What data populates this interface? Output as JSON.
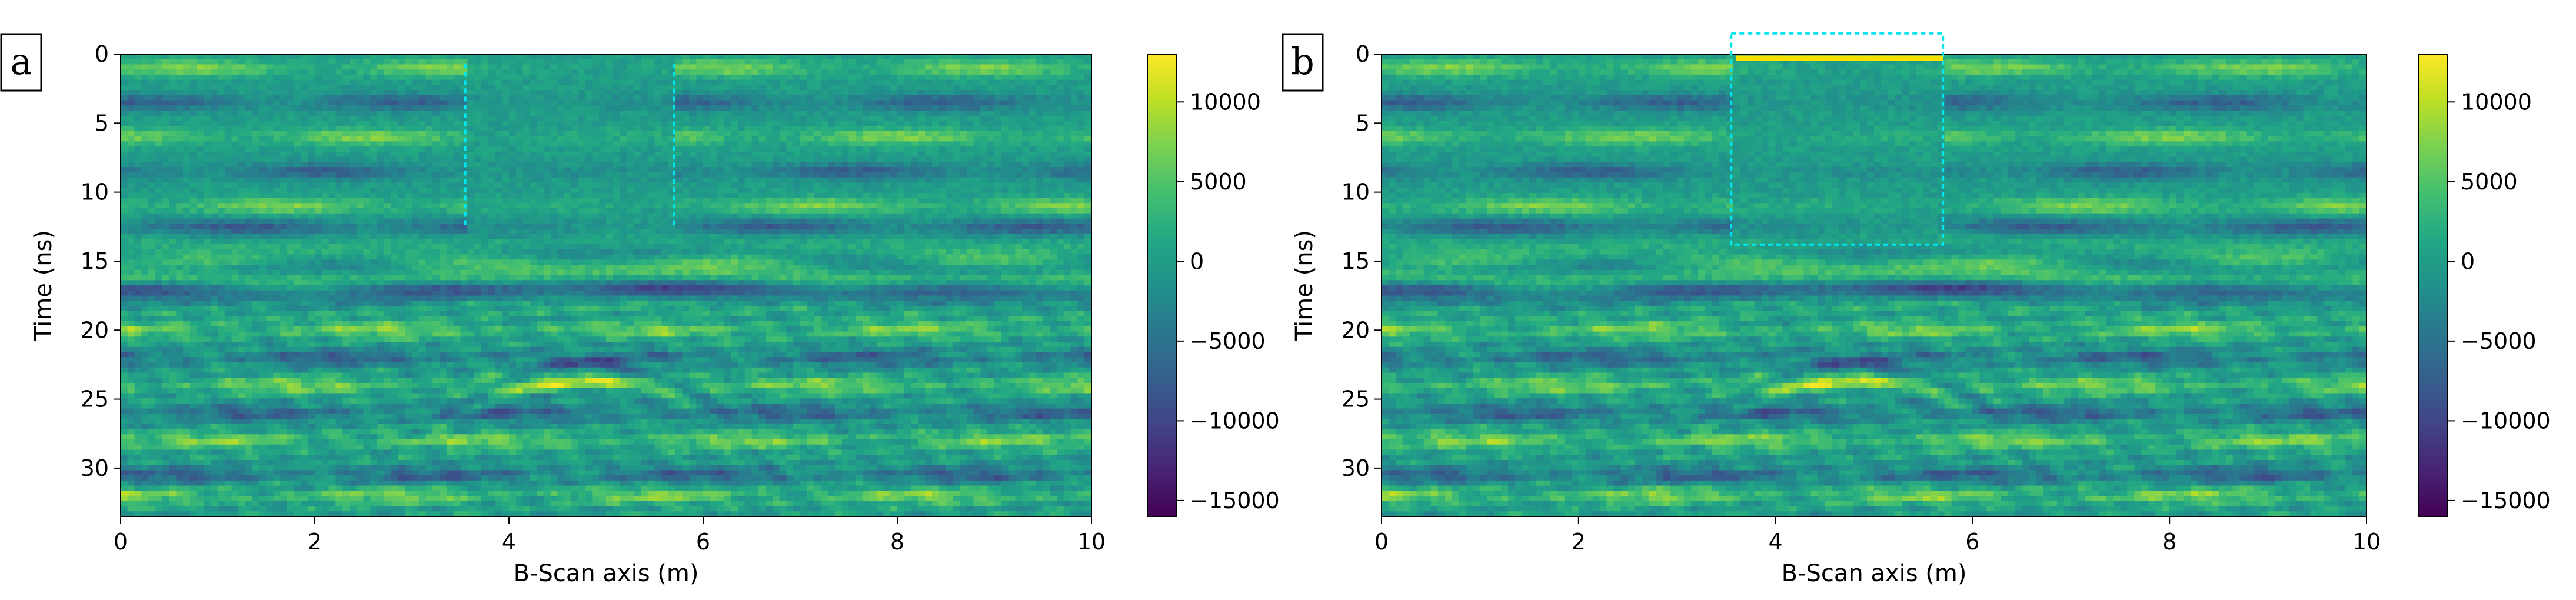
{
  "chart_data": [
    {
      "type": "heatmap",
      "panel_label": "a",
      "xlabel": "B-Scan axis (m)",
      "ylabel": "Time (ns)",
      "xlim": [
        0,
        10
      ],
      "ylim": [
        33.5,
        0
      ],
      "x_ticks": [
        0,
        2,
        4,
        6,
        8,
        10
      ],
      "y_ticks": [
        0,
        5,
        10,
        15,
        20,
        25,
        30
      ],
      "colorbar": {
        "colormap": "viridis",
        "range": [
          -16000,
          13000
        ],
        "ticks": [
          10000,
          5000,
          0,
          -5000,
          -10000,
          -15000
        ],
        "tick_labels": [
          "10000",
          "5000",
          "0",
          "−5000",
          "−10000",
          "−15000"
        ]
      },
      "layers": {
        "horizontal_bands_ns": [
          1,
          3.5,
          6,
          8.5,
          11,
          12.5,
          15,
          17,
          20,
          22,
          24,
          26,
          28,
          30.5,
          32
        ],
        "hyperbola_apex": {
          "x_m": 4.8,
          "t_ns": 23
        },
        "attenuated_region": {
          "x_m": [
            3.55,
            5.7
          ],
          "t_ns": [
            0,
            13
          ]
        }
      },
      "annotations": [
        {
          "type": "dashed-line",
          "color": "#00e5ee",
          "x_m": 3.55,
          "t_ns": [
            0.7,
            12.5
          ]
        },
        {
          "type": "dashed-line",
          "color": "#00e5ee",
          "x_m": 5.7,
          "t_ns": [
            0.7,
            12.5
          ]
        }
      ]
    },
    {
      "type": "heatmap",
      "panel_label": "b",
      "xlabel": "B-Scan axis (m)",
      "ylabel": "Time (ns)",
      "xlim": [
        0,
        10
      ],
      "ylim": [
        33.5,
        0
      ],
      "x_ticks": [
        0,
        2,
        4,
        6,
        8,
        10
      ],
      "y_ticks": [
        0,
        5,
        10,
        15,
        20,
        25,
        30
      ],
      "colorbar": {
        "colormap": "viridis",
        "range": [
          -16000,
          13000
        ],
        "ticks": [
          10000,
          5000,
          0,
          -5000,
          -10000,
          -15000
        ],
        "tick_labels": [
          "10000",
          "5000",
          "0",
          "−5000",
          "−10000",
          "−15000"
        ]
      },
      "layers": {
        "horizontal_bands_ns": [
          1,
          3.5,
          6,
          8.5,
          11,
          12.5,
          15,
          17,
          20,
          22,
          24,
          26,
          28,
          30.5,
          32
        ],
        "hyperbola_apex": {
          "x_m": 4.8,
          "t_ns": 23
        },
        "attenuated_region": {
          "x_m": [
            3.55,
            5.7
          ],
          "t_ns": [
            0,
            13
          ]
        }
      },
      "annotations": [
        {
          "type": "dashed-box",
          "color": "#00e5ee",
          "x_m": [
            3.55,
            5.7
          ],
          "t_ns": [
            -1.5,
            13.8
          ]
        },
        {
          "type": "bright-line",
          "color": "#ffe100",
          "x_m": [
            3.6,
            5.7
          ],
          "t_ns": 0.3
        }
      ]
    }
  ]
}
